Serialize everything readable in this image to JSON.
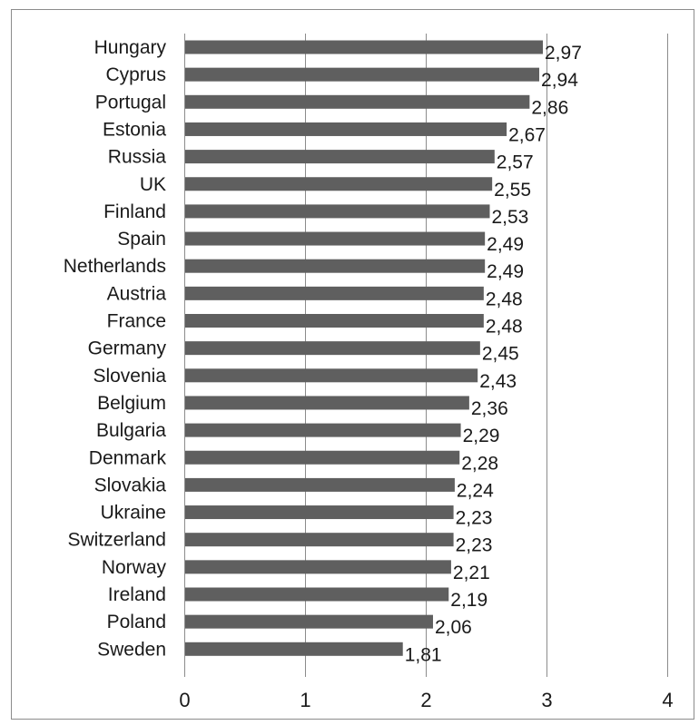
{
  "chart_data": {
    "type": "bar",
    "orientation": "horizontal",
    "title": "",
    "xlabel": "",
    "ylabel": "",
    "xlim": [
      0,
      4
    ],
    "x_ticks": [
      "0",
      "1",
      "2",
      "3",
      "4"
    ],
    "grid": "vertical",
    "bar_color": "#5f5f5f",
    "decimal_separator": ",",
    "categories": [
      "Hungary",
      "Cyprus",
      "Portugal",
      "Estonia",
      "Russia",
      "UK",
      "Finland",
      "Spain",
      "Netherlands",
      "Austria",
      "France",
      "Germany",
      "Slovenia",
      "Belgium",
      "Bulgaria",
      "Denmark",
      "Slovakia",
      "Ukraine",
      "Switzerland",
      "Norway",
      "Ireland",
      "Poland",
      "Sweden"
    ],
    "values": [
      2.97,
      2.94,
      2.86,
      2.67,
      2.57,
      2.55,
      2.53,
      2.49,
      2.49,
      2.48,
      2.48,
      2.45,
      2.43,
      2.36,
      2.29,
      2.28,
      2.24,
      2.23,
      2.23,
      2.21,
      2.19,
      2.06,
      1.81
    ],
    "value_labels": [
      "2,97",
      "2,94",
      "2,86",
      "2,67",
      "2,57",
      "2,55",
      "2,53",
      "2,49",
      "2,49",
      "2,48",
      "2,48",
      "2,45",
      "2,43",
      "2,36",
      "2,29",
      "2,28",
      "2,24",
      "2,23",
      "2,23",
      "2,21",
      "2,19",
      "2,06",
      "1,81"
    ]
  }
}
